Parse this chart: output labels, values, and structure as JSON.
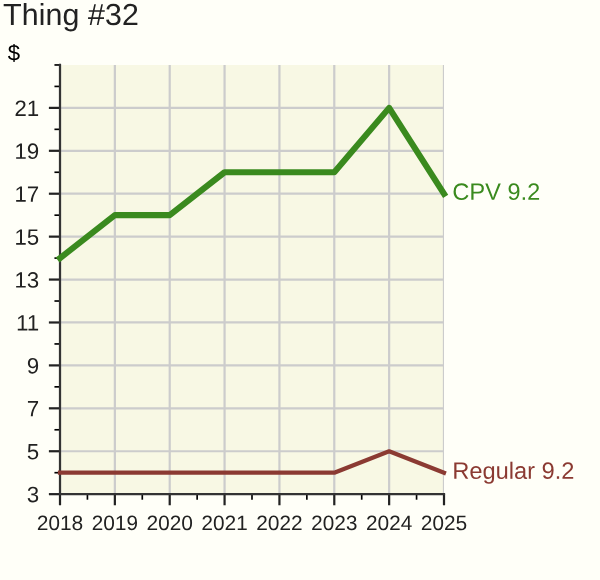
{
  "chart_data": {
    "type": "line",
    "title": "Thing #32",
    "ylabel": "$",
    "x": [
      2018,
      2019,
      2020,
      2021,
      2022,
      2023,
      2024,
      2025
    ],
    "series": [
      {
        "name": "CPV 9.2",
        "color": "#3a8a1e",
        "values": [
          14,
          16,
          16,
          18,
          18,
          18,
          21,
          17
        ]
      },
      {
        "name": "Regular 9.2",
        "color": "#8b3a32",
        "values": [
          4,
          4,
          4,
          4,
          4,
          4,
          5,
          4
        ]
      }
    ],
    "xlim": [
      2018,
      2025
    ],
    "xticks": [
      2018,
      2019,
      2020,
      2021,
      2022,
      2023,
      2024,
      2025
    ],
    "ylim": [
      3,
      23
    ],
    "yticks": [
      3,
      5,
      7,
      9,
      11,
      13,
      15,
      17,
      19,
      21
    ],
    "grid": true,
    "legend": false,
    "marker": "none",
    "line_style": "solid"
  }
}
